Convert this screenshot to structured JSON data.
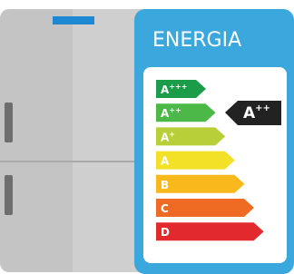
{
  "label": {
    "title": "ENERGIA",
    "classes": [
      {
        "letter": "A",
        "sup": "+++"
      },
      {
        "letter": "A",
        "sup": "++"
      },
      {
        "letter": "A",
        "sup": "+"
      },
      {
        "letter": "A"
      },
      {
        "letter": "B"
      },
      {
        "letter": "C"
      },
      {
        "letter": "D"
      }
    ],
    "rating": {
      "letter": "A",
      "sup": "++"
    }
  }
}
